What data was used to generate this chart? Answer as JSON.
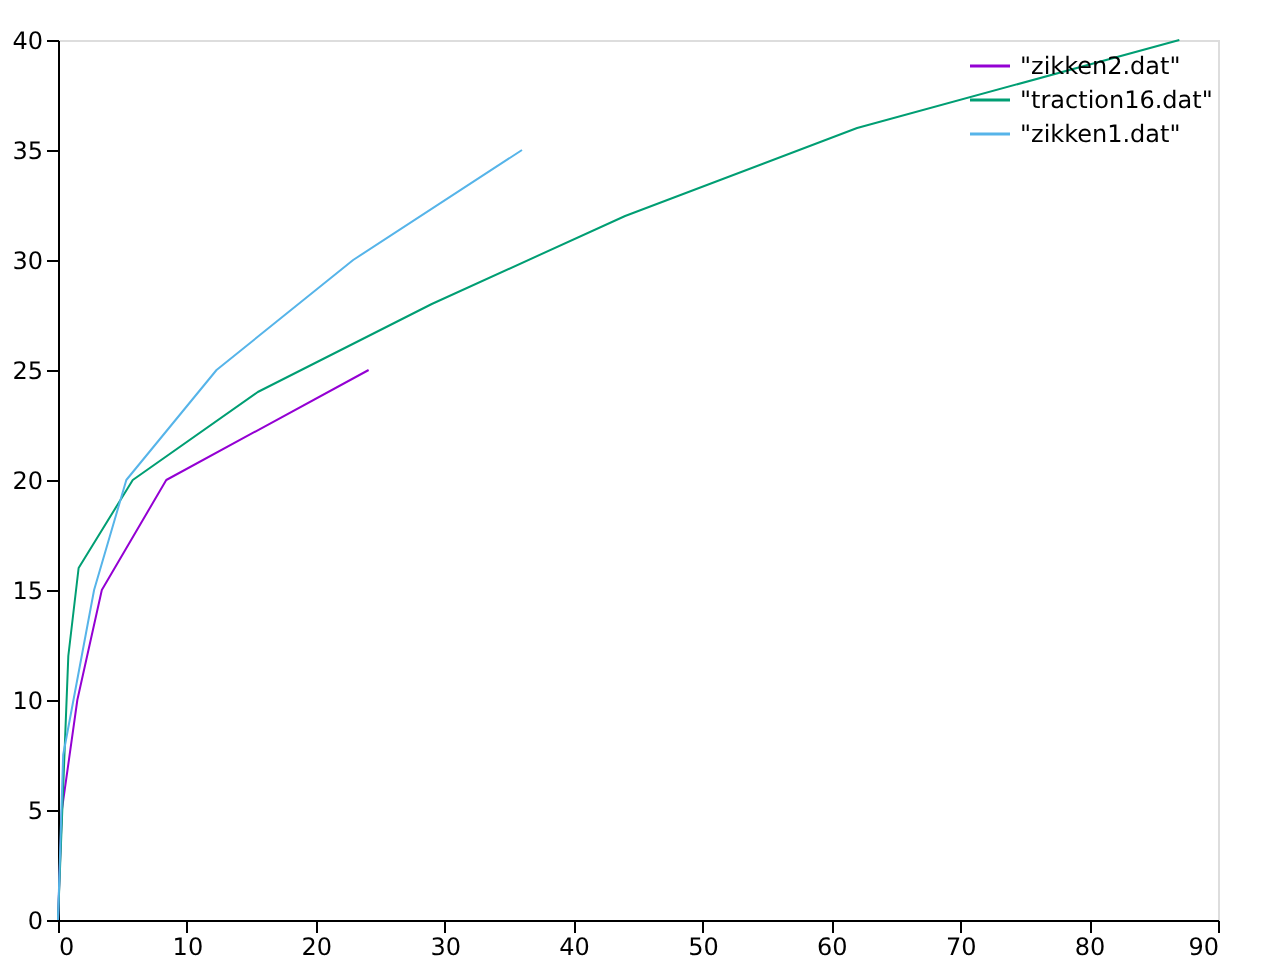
{
  "chart_data": {
    "type": "line",
    "xlim": [
      0,
      90
    ],
    "ylim": [
      0,
      40
    ],
    "xticks": [
      0,
      10,
      20,
      30,
      40,
      50,
      60,
      70,
      80,
      90
    ],
    "yticks": [
      0,
      5,
      10,
      15,
      20,
      25,
      30,
      35,
      40
    ],
    "grid": false,
    "legend": "top right",
    "marker": "none",
    "line_style": "solid",
    "series": [
      {
        "name": "\"zikken2.dat\"",
        "color": "#9400d3",
        "x": [
          0,
          0.3,
          1.5,
          3.4,
          8.4,
          24.1
        ],
        "values": [
          0,
          5,
          10,
          15,
          20,
          25
        ]
      },
      {
        "name": "\"traction16.dat\"",
        "color": "#009e73",
        "x": [
          0,
          0.8,
          1.6,
          5.8,
          15.5,
          29,
          44,
          62,
          87
        ],
        "values": [
          0,
          12,
          16,
          20,
          24,
          28,
          32,
          36,
          40
        ]
      },
      {
        "name": "\"zikken1.dat\"",
        "color": "#56b4e9",
        "x": [
          0,
          0.4,
          2.8,
          5.3,
          12.3,
          22.9,
          36
        ],
        "values": [
          0,
          7.5,
          15,
          20,
          25,
          30,
          35
        ]
      }
    ]
  }
}
